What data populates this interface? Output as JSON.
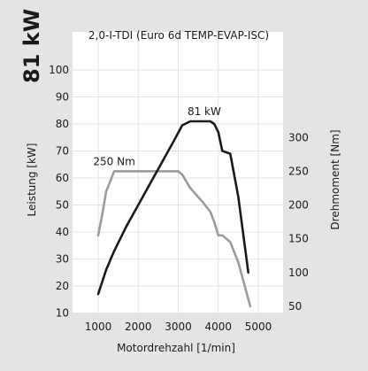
{
  "power_label": "81 kW",
  "chart_data": {
    "type": "line",
    "title": "2,0-I-TDI (Euro 6d TEMP-EVAP-ISC)",
    "xlabel": "Motordrehzahl [1/min]",
    "ylabel_left": "Leistung [kW]",
    "ylabel_right": "Drehmoment [Nm]",
    "xlim": [
      700,
      5300
    ],
    "ylim_left": [
      0,
      100
    ],
    "ylim_right": [
      0,
      400
    ],
    "x_ticks": [
      1000,
      2000,
      3000,
      4000,
      5000
    ],
    "y_left_ticks": [
      10,
      20,
      30,
      40,
      50,
      60,
      70,
      80,
      90,
      100
    ],
    "y_right_ticks": [
      50,
      100,
      150,
      200,
      250,
      300
    ],
    "grid": true,
    "series": [
      {
        "name": "Leistung",
        "axis": "left",
        "color": "#1a1a1a",
        "x": [
          1000,
          1200,
          1400,
          1700,
          2000,
          2300,
          2600,
          2900,
          3100,
          3300,
          3800,
          3900,
          4000,
          4100,
          4300,
          4500,
          4750
        ],
        "y": [
          17,
          26,
          33,
          42,
          50,
          58,
          66,
          74,
          79.5,
          81,
          81,
          80,
          77,
          70,
          69,
          53,
          25
        ]
      },
      {
        "name": "Drehmoment",
        "axis": "right",
        "color": "#999b9e",
        "x": [
          1000,
          1100,
          1200,
          1400,
          1500,
          3000,
          3100,
          3300,
          3600,
          3800,
          3900,
          4000,
          4100,
          4300,
          4500,
          4800
        ],
        "y": [
          155,
          185,
          220,
          250,
          250,
          250,
          245,
          225,
          205,
          190,
          175,
          155,
          155,
          145,
          115,
          50
        ]
      }
    ],
    "annotations": [
      {
        "text": "250 Nm",
        "x": 1400,
        "axis": "right",
        "y": 250
      },
      {
        "text": "81 kW",
        "x": 3650,
        "axis": "left",
        "y": 81
      }
    ]
  }
}
